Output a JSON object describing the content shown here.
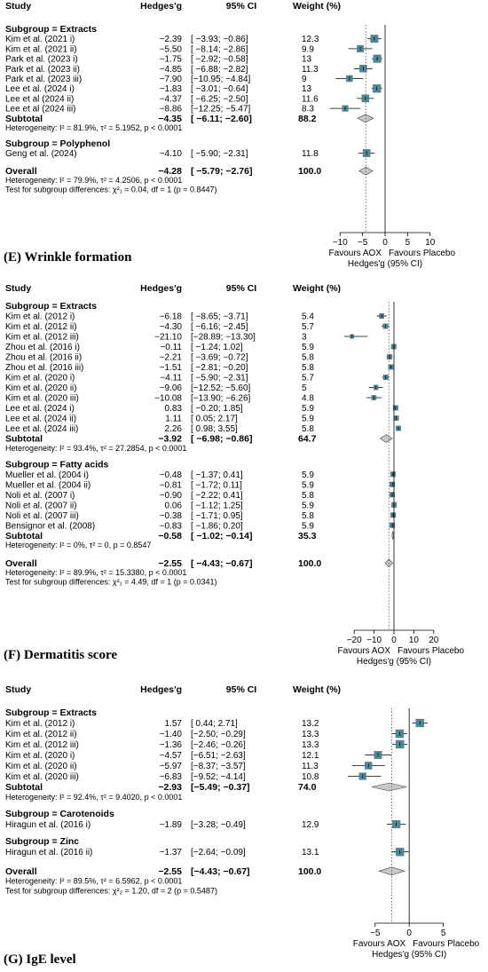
{
  "chart_data": [
    {
      "type": "forest",
      "panel_label": "",
      "headers": {
        "study": "Study",
        "es": "Hedges'g",
        "ci": "95% CI",
        "weight": "Weight (%)"
      },
      "subgroups": [
        {
          "title": "Subgroup = Extracts",
          "studies": [
            {
              "name": "Kim et al. (2021 i)",
              "g": -2.39,
              "lo": -3.93,
              "hi": -0.86,
              "ci_text": "[ −3.93; −0.86]",
              "g_text": "−2.39",
              "w": 12.3
            },
            {
              "name": "Kim et al. (2021 ii)",
              "g": -5.5,
              "lo": -8.14,
              "hi": -2.86,
              "ci_text": "[ −8.14; −2.86]",
              "g_text": "−5.50",
              "w": 9.9
            },
            {
              "name": "Park et al. (2023 i)",
              "g": -1.75,
              "lo": -2.92,
              "hi": -0.58,
              "ci_text": "[ −2.92; −0.58]",
              "g_text": "−1.75",
              "w": 13.0
            },
            {
              "name": "Park et al. (2023 ii)",
              "g": -4.85,
              "lo": -6.88,
              "hi": -2.82,
              "ci_text": "[ −6.88; −2.82]",
              "g_text": "−4.85",
              "w": 11.3
            },
            {
              "name": "Park et al. (2023 iii)",
              "g": -7.9,
              "lo": -10.95,
              "hi": -4.84,
              "ci_text": "[−10.95; −4.84]",
              "g_text": "−7.90",
              "w": 9.0
            },
            {
              "name": "Lee et al. (2024 i)",
              "g": -1.83,
              "lo": -3.01,
              "hi": -0.64,
              "ci_text": "[ −3.01; −0.64]",
              "g_text": "−1.83",
              "w": 13.0
            },
            {
              "name": "Lee et al (2024 ii)",
              "g": -4.37,
              "lo": -6.25,
              "hi": -2.5,
              "ci_text": "[ −6.25; −2.50]",
              "g_text": "−4.37",
              "w": 11.6
            },
            {
              "name": "Lee et al (2024 iii)",
              "g": -8.86,
              "lo": -12.25,
              "hi": -5.47,
              "ci_text": "[−12.25; −5.47]",
              "g_text": "−8.86",
              "w": 8.3
            }
          ],
          "subtotal": {
            "label": "Subtotal",
            "g": -4.35,
            "lo": -6.11,
            "hi": -2.6,
            "g_text": "−4.35",
            "ci_text": "[ −6.11; −2.60]",
            "w_text": "88.2"
          },
          "heterogeneity": "Heterogeneity: I² = 81.9%, τ² = 5.1952, p < 0.0001"
        },
        {
          "title": "Subgroup = Polyphenol",
          "studies": [
            {
              "name": "Geng et al. (2024)",
              "g": -4.1,
              "lo": -5.9,
              "hi": -2.31,
              "ci_text": "[ −5.90; −2.31]",
              "g_text": "−4.10",
              "w": 11.8
            }
          ]
        }
      ],
      "overall": {
        "label": "Overall",
        "g": -4.28,
        "lo": -5.79,
        "hi": -2.76,
        "g_text": "−4.28",
        "ci_text": "[ −5.79; −2.76]",
        "w_text": "100.0"
      },
      "overall_heterogeneity": "Heterogeneity: I² = 79.9%, τ² = 4.2506, p < 0.0001",
      "subgroup_test": "Test for subgroup differences: χ²₁ = 0.04, df = 1 (p = 0.8447)",
      "axis": {
        "xlim": [
          -13,
          13
        ],
        "ticks": [
          -10,
          -5,
          0,
          5,
          10
        ],
        "xlabel": "Hedges'g (95% CI)",
        "left_label": "Favours AOX",
        "right_label": "Favours Placebo"
      }
    },
    {
      "type": "forest",
      "panel_label": "(E) Wrinkle formation",
      "headers": {
        "study": "Study",
        "es": "Hedges'g",
        "ci": "95% CI",
        "weight": "Weight (%)"
      },
      "subgroups": [
        {
          "title": "Subgroup = Extracts",
          "studies": [
            {
              "name": "Kim et al. (2012 i)",
              "g": -6.18,
              "lo": -8.65,
              "hi": -3.71,
              "g_text": "−6.18",
              "ci_text": "[ −8.65; −3.71]",
              "w": 5.4
            },
            {
              "name": "Kim et al. (2012 ii)",
              "g": -4.3,
              "lo": -6.16,
              "hi": -2.45,
              "g_text": "−4.30",
              "ci_text": "[ −6.16; −2.45]",
              "w": 5.7
            },
            {
              "name": "Kim et al. (2012 iii)",
              "g": -21.1,
              "lo": -28.89,
              "hi": -13.3,
              "g_text": "−21.10",
              "ci_text": "[−28.89; −13.30]",
              "w": 3.0
            },
            {
              "name": "Zhou et al. (2016 i)",
              "g": -0.11,
              "lo": -1.24,
              "hi": 1.02,
              "g_text": "−0.11",
              "ci_text": "[ −1.24;   1.02]",
              "w": 5.9
            },
            {
              "name": "Zhou et al. (2016 ii)",
              "g": -2.21,
              "lo": -3.69,
              "hi": -0.72,
              "g_text": "−2.21",
              "ci_text": "[ −3.69; −0.72]",
              "w": 5.8
            },
            {
              "name": "Zhou et al. (2016 iii)",
              "g": -1.51,
              "lo": -2.81,
              "hi": -0.2,
              "g_text": "−1.51",
              "ci_text": "[ −2.81; −0.20]",
              "w": 5.8
            },
            {
              "name": "Kim et al. (2020 i)",
              "g": -4.11,
              "lo": -5.9,
              "hi": -2.31,
              "g_text": "−4.11",
              "ci_text": "[ −5.90; −2.31]",
              "w": 5.7
            },
            {
              "name": "Kim et al. (2020 ii)",
              "g": -9.06,
              "lo": -12.52,
              "hi": -5.6,
              "g_text": "−9.06",
              "ci_text": "[−12.52; −5.60]",
              "w": 5.0
            },
            {
              "name": "Kim et al. (2020 iii)",
              "g": -10.08,
              "lo": -13.9,
              "hi": -6.26,
              "g_text": "−10.08",
              "ci_text": "[−13.90; −6.26]",
              "w": 4.8
            },
            {
              "name": "Lee et al. (2024 i)",
              "g": 0.83,
              "lo": -0.2,
              "hi": 1.85,
              "g_text": "0.83",
              "ci_text": "[ −0.20;   1.85]",
              "w": 5.9
            },
            {
              "name": "Lee et al. (2024 ii)",
              "g": 1.11,
              "lo": 0.05,
              "hi": 2.17,
              "g_text": "1.11",
              "ci_text": "[   0.05;   2.17]",
              "w": 5.9
            },
            {
              "name": "Lee et al. (2024 iii)",
              "g": 2.26,
              "lo": 0.98,
              "hi": 3.55,
              "g_text": "2.26",
              "ci_text": "[   0.98;   3.55]",
              "w": 5.8
            }
          ],
          "subtotal": {
            "label": "Subtotal",
            "g": -3.92,
            "lo": -6.98,
            "hi": -0.86,
            "g_text": "−3.92",
            "ci_text": "[ −6.98; −0.86]",
            "w_text": "64.7"
          },
          "heterogeneity": "Heterogeneity: I² = 93.4%, τ² = 27.2854, p < 0.0001"
        },
        {
          "title": "Subgroup = Fatty acids",
          "studies": [
            {
              "name": "Mueller et al. (2004 i)",
              "g": -0.48,
              "lo": -1.37,
              "hi": 0.41,
              "g_text": "−0.48",
              "ci_text": "[ −1.37;   0.41]",
              "w": 5.9
            },
            {
              "name": "Mueller et al. (2004 ii)",
              "g": -0.81,
              "lo": -1.72,
              "hi": 0.11,
              "g_text": "−0.81",
              "ci_text": "[ −1.72;   0.11]",
              "w": 5.9
            },
            {
              "name": "Noli et al. (2007 i)",
              "g": -0.9,
              "lo": -2.22,
              "hi": 0.41,
              "g_text": "−0.90",
              "ci_text": "[ −2.22;   0.41]",
              "w": 5.8
            },
            {
              "name": "Noli et al. (2007 ii)",
              "g": 0.06,
              "lo": -1.12,
              "hi": 1.25,
              "g_text": "0.06",
              "ci_text": "[ −1.12;   1.25]",
              "w": 5.9
            },
            {
              "name": "Noli et al. (2007 iii)",
              "g": -0.38,
              "lo": -1.71,
              "hi": 0.95,
              "g_text": "−0.38",
              "ci_text": "[ −1.71;   0.95]",
              "w": 5.8
            },
            {
              "name": "Bensignor et al. (2008)",
              "g": -0.83,
              "lo": -1.86,
              "hi": 0.2,
              "g_text": "−0.83",
              "ci_text": "[ −1.86;   0.20]",
              "w": 5.9
            }
          ],
          "subtotal": {
            "label": "Subtotal",
            "g": -0.58,
            "lo": -1.02,
            "hi": -0.14,
            "g_text": "−0.58",
            "ci_text": "[ −1.02; −0.14]",
            "w_text": "35.3"
          },
          "heterogeneity": "Heterogeneity: I² = 0%, τ² = 0, p = 0.8547"
        }
      ],
      "overall": {
        "label": "Overall",
        "g": -2.55,
        "lo": -4.43,
        "hi": -0.67,
        "g_text": "−2.55",
        "ci_text": "[ −4.43; −0.67]",
        "w_text": "100.0"
      },
      "overall_heterogeneity": "Heterogeneity: I² = 89.9%, τ² = 15.3380, p < 0.0001",
      "subgroup_test": "Test for subgroup differences: χ²₁ = 4.49, df = 1 (p = 0.0341)",
      "axis": {
        "xlim": [
          -25,
          25
        ],
        "ticks": [
          -20,
          -10,
          0,
          10,
          20
        ],
        "xlabel": "Hedges'g (95% CI)",
        "left_label": "Favours AOX",
        "right_label": "Favours Placebo"
      }
    },
    {
      "type": "forest",
      "panel_label": "(F) Dermatitis score",
      "headers": {
        "study": "Study",
        "es": "Hedges'g",
        "ci": "95% CI",
        "weight": "Weight (%)"
      },
      "subgroups": [
        {
          "title": "Subgroup = Extracts",
          "studies": [
            {
              "name": "Kim et al. (2012 i)",
              "g": 1.57,
              "lo": 0.44,
              "hi": 2.71,
              "g_text": "1.57",
              "ci_text": "[ 0.44;   2.71]",
              "w": 13.2
            },
            {
              "name": "Kim et al. (2012 ii)",
              "g": -1.4,
              "lo": -2.5,
              "hi": -0.29,
              "g_text": "−1.40",
              "ci_text": "[−2.50; −0.29]",
              "w": 13.3
            },
            {
              "name": "Kim et al. (2012 iii)",
              "g": -1.36,
              "lo": -2.46,
              "hi": -0.26,
              "g_text": "−1.36",
              "ci_text": "[−2.46; −0.26]",
              "w": 13.3
            },
            {
              "name": "Kim et al. (2020 i)",
              "g": -4.57,
              "lo": -6.51,
              "hi": -2.63,
              "g_text": "−4.57",
              "ci_text": "[−6.51; −2.63]",
              "w": 12.1
            },
            {
              "name": "Kim et al. (2020 ii)",
              "g": -5.97,
              "lo": -8.37,
              "hi": -3.57,
              "g_text": "−5.97",
              "ci_text": "[−8.37; −3.57]",
              "w": 11.3
            },
            {
              "name": "Kim et al. (2020 iii)",
              "g": -6.83,
              "lo": -9.52,
              "hi": -4.14,
              "g_text": "−6.83",
              "ci_text": "[−9.52; −4.14]",
              "w": 10.8
            }
          ],
          "subtotal": {
            "label": "Subtotal",
            "g": -2.93,
            "lo": -5.49,
            "hi": -0.37,
            "g_text": "−2.93",
            "ci_text": "[−5.49; −0.37]",
            "w_text": "74.0"
          },
          "heterogeneity": "Heterogeneity: I² = 92.4%, τ² = 9.4020, p < 0.0001"
        },
        {
          "title": "Subgroup = Carotenoids",
          "studies": [
            {
              "name": "Hiragun et al. (2016 i)",
              "g": -1.89,
              "lo": -3.28,
              "hi": -0.49,
              "g_text": "−1.89",
              "ci_text": "[−3.28; −0.49]",
              "w": 12.9
            }
          ]
        },
        {
          "title": "Subgroup = Zinc",
          "studies": [
            {
              "name": "Hiragun et al. (2016 ii)",
              "g": -1.37,
              "lo": -2.64,
              "hi": -0.09,
              "g_text": "−1.37",
              "ci_text": "[−2.64; −0.09]",
              "w": 13.1
            }
          ]
        }
      ],
      "overall": {
        "label": "Overall",
        "g": -2.55,
        "lo": -4.43,
        "hi": -0.67,
        "g_text": "−2.55",
        "ci_text": "[−4.43; −0.67]",
        "w_text": "100.0"
      },
      "overall_heterogeneity": "Heterogeneity: I² = 89.5%, τ² = 6.5962, p < 0.0001",
      "subgroup_test": "Test for subgroup differences: χ²₂ = 1.20, df = 2 (p = 0.5487)",
      "axis": {
        "xlim": [
          -9,
          7
        ],
        "ticks": [
          -5,
          0,
          5
        ],
        "xlabel": "Hedges'g (95% CI)",
        "left_label": "Favours AOX",
        "right_label": "Favours Placebo"
      }
    }
  ],
  "footer": {
    "panel_label": "(G) IgE level"
  },
  "colors": {
    "square": "#4a8a9a",
    "diamond": "#c8c8c8",
    "text": "#000000"
  }
}
